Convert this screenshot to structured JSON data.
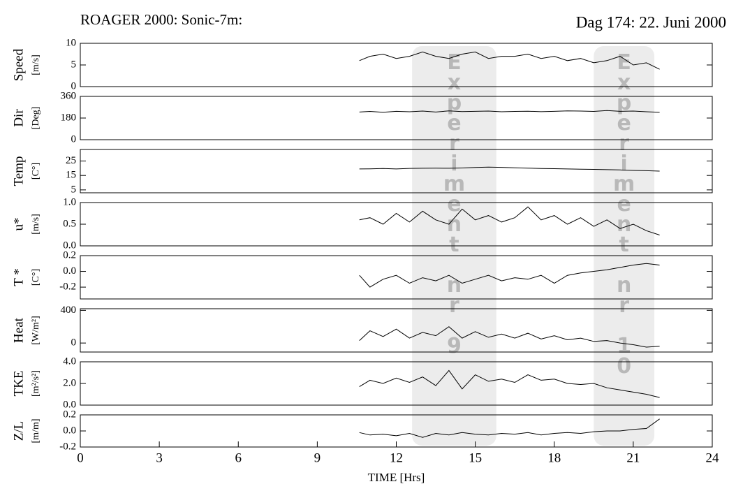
{
  "title_left": "ROAGER 2000: Sonic-7m:",
  "title_right": "Dag 174: 22. Juni 2000",
  "annotations": [
    {
      "text": "Experiment nr 9",
      "xlim": [
        12.6,
        15.8
      ]
    },
    {
      "text": "Experiment nr 10",
      "xlim": [
        19.5,
        21.8
      ]
    }
  ],
  "chart_data": [
    {
      "type": "line",
      "ylabel": "Speed",
      "yunit": "[m/s]",
      "xlim": [
        0,
        24
      ],
      "ylim": [
        0,
        10
      ],
      "yticks": [
        0,
        5,
        10
      ],
      "x": [
        10.6,
        11,
        11.5,
        12,
        12.5,
        13,
        13.5,
        14,
        14.5,
        15,
        15.5,
        16,
        16.5,
        17,
        17.5,
        18,
        18.5,
        19,
        19.5,
        20,
        20.5,
        21,
        21.5,
        22
      ],
      "values": [
        6,
        7,
        7.5,
        6.5,
        7,
        8,
        7,
        6.5,
        7.5,
        8,
        6.5,
        7,
        7,
        7.5,
        6.5,
        7,
        6,
        6.5,
        5.5,
        6,
        7,
        5,
        5.5,
        4
      ]
    },
    {
      "type": "line",
      "ylabel": "Dir",
      "yunit": "[Deg]",
      "xlim": [
        0,
        24
      ],
      "ylim": [
        0,
        360
      ],
      "yticks": [
        0,
        180,
        360
      ],
      "x": [
        10.6,
        11,
        11.5,
        12,
        12.5,
        13,
        13.5,
        14,
        14.5,
        15,
        15.5,
        16,
        16.5,
        17,
        17.5,
        18,
        18.5,
        19,
        19.5,
        20,
        20.5,
        21,
        21.5,
        22
      ],
      "values": [
        230,
        235,
        228,
        236,
        232,
        238,
        230,
        240,
        234,
        236,
        238,
        232,
        235,
        237,
        233,
        236,
        240,
        238,
        235,
        242,
        236,
        238,
        232,
        228
      ]
    },
    {
      "type": "line",
      "ylabel": "Temp",
      "yunit": "[C°]",
      "xlim": [
        0,
        24
      ],
      "ylim": [
        3,
        33
      ],
      "yticks": [
        5,
        15,
        25
      ],
      "x": [
        10.6,
        11,
        11.5,
        12,
        12.5,
        13,
        13.5,
        14,
        14.5,
        15,
        15.5,
        16,
        16.5,
        17,
        17.5,
        18,
        18.5,
        19,
        19.5,
        20,
        20.5,
        21,
        21.5,
        22
      ],
      "values": [
        19.5,
        19.6,
        19.8,
        19.5,
        19.9,
        20,
        20.1,
        20,
        20.2,
        20.5,
        20.8,
        20.6,
        20.3,
        20.1,
        19.8,
        19.7,
        19.5,
        19.3,
        19.2,
        19,
        18.8,
        18.5,
        18.3,
        18
      ]
    },
    {
      "type": "line",
      "ylabel": "u*",
      "yunit": "[m/s]",
      "xlim": [
        0,
        24
      ],
      "ylim": [
        0,
        1
      ],
      "yticks": [
        {
          "value": 0,
          "label": "0.0"
        },
        0.5,
        {
          "value": 1,
          "label": "1.0"
        }
      ],
      "x": [
        10.6,
        11,
        11.5,
        12,
        12.5,
        13,
        13.5,
        14,
        14.5,
        15,
        15.5,
        16,
        16.5,
        17,
        17.5,
        18,
        18.5,
        19,
        19.5,
        20,
        20.5,
        21,
        21.5,
        22
      ],
      "values": [
        0.6,
        0.65,
        0.5,
        0.75,
        0.55,
        0.8,
        0.6,
        0.5,
        0.85,
        0.6,
        0.7,
        0.55,
        0.65,
        0.9,
        0.6,
        0.7,
        0.5,
        0.65,
        0.45,
        0.6,
        0.4,
        0.5,
        0.35,
        0.25
      ]
    },
    {
      "type": "line",
      "ylabel": "T *",
      "yunit": "[C°]",
      "xlim": [
        0,
        24
      ],
      "ylim": [
        -0.35,
        0.2
      ],
      "yticks": [
        -0.2,
        {
          "value": 0,
          "label": "0.0"
        },
        0.2
      ],
      "x": [
        10.6,
        11,
        11.5,
        12,
        12.5,
        13,
        13.5,
        14,
        14.5,
        15,
        15.5,
        16,
        16.5,
        17,
        17.5,
        18,
        18.5,
        19,
        19.5,
        20,
        20.5,
        21,
        21.5,
        22
      ],
      "values": [
        -0.05,
        -0.2,
        -0.1,
        -0.05,
        -0.15,
        -0.08,
        -0.12,
        -0.05,
        -0.15,
        -0.1,
        -0.05,
        -0.12,
        -0.08,
        -0.1,
        -0.05,
        -0.15,
        -0.05,
        -0.02,
        0,
        0.02,
        0.05,
        0.08,
        0.1,
        0.08
      ]
    },
    {
      "type": "line",
      "ylabel": "Heat",
      "yunit": "[W/m²]",
      "xlim": [
        0,
        24
      ],
      "ylim": [
        -110,
        420
      ],
      "yticks": [
        0,
        400
      ],
      "x": [
        10.6,
        11,
        11.5,
        12,
        12.5,
        13,
        13.5,
        14,
        14.5,
        15,
        15.5,
        16,
        16.5,
        17,
        17.5,
        18,
        18.5,
        19,
        19.5,
        20,
        20.5,
        21,
        21.5,
        22
      ],
      "values": [
        30,
        150,
        80,
        170,
        60,
        130,
        90,
        200,
        60,
        140,
        70,
        110,
        60,
        120,
        50,
        90,
        40,
        60,
        20,
        30,
        0,
        -20,
        -50,
        -40
      ]
    },
    {
      "type": "line",
      "ylabel": "TKE",
      "yunit": "[m²/s²]",
      "xlim": [
        0,
        24
      ],
      "ylim": [
        0,
        4
      ],
      "yticks": [
        {
          "value": 0,
          "label": "0.0"
        },
        {
          "value": 2,
          "label": "2.0"
        },
        {
          "value": 4,
          "label": "4.0"
        }
      ],
      "x": [
        10.6,
        11,
        11.5,
        12,
        12.5,
        13,
        13.5,
        14,
        14.5,
        15,
        15.5,
        16,
        16.5,
        17,
        17.5,
        18,
        18.5,
        19,
        19.5,
        20,
        20.5,
        21,
        21.5,
        22
      ],
      "values": [
        1.7,
        2.3,
        2,
        2.5,
        2.1,
        2.6,
        1.8,
        3.2,
        1.5,
        2.8,
        2.2,
        2.4,
        2.1,
        2.8,
        2.3,
        2.4,
        2,
        1.9,
        2,
        1.6,
        1.4,
        1.2,
        1,
        0.7
      ]
    },
    {
      "type": "line",
      "ylabel": "Z/L",
      "yunit": "[m/m]",
      "xlim": [
        0,
        24
      ],
      "ylim": [
        -0.2,
        0.2
      ],
      "yticks": [
        -0.2,
        {
          "value": 0,
          "label": "0.0"
        },
        0.2
      ],
      "xlabel": "TIME [Hrs]",
      "xticks": [
        0,
        3,
        6,
        9,
        12,
        15,
        18,
        21,
        24
      ],
      "x": [
        10.6,
        11,
        11.5,
        12,
        12.5,
        13,
        13.5,
        14,
        14.5,
        15,
        15.5,
        16,
        16.5,
        17,
        17.5,
        18,
        18.5,
        19,
        19.5,
        20,
        20.5,
        21,
        21.5,
        22
      ],
      "values": [
        -0.02,
        -0.05,
        -0.04,
        -0.06,
        -0.03,
        -0.08,
        -0.03,
        -0.05,
        -0.02,
        -0.04,
        -0.05,
        -0.03,
        -0.04,
        -0.02,
        -0.05,
        -0.03,
        -0.02,
        -0.03,
        -0.01,
        0,
        0,
        0.02,
        0.03,
        0.15
      ]
    }
  ]
}
